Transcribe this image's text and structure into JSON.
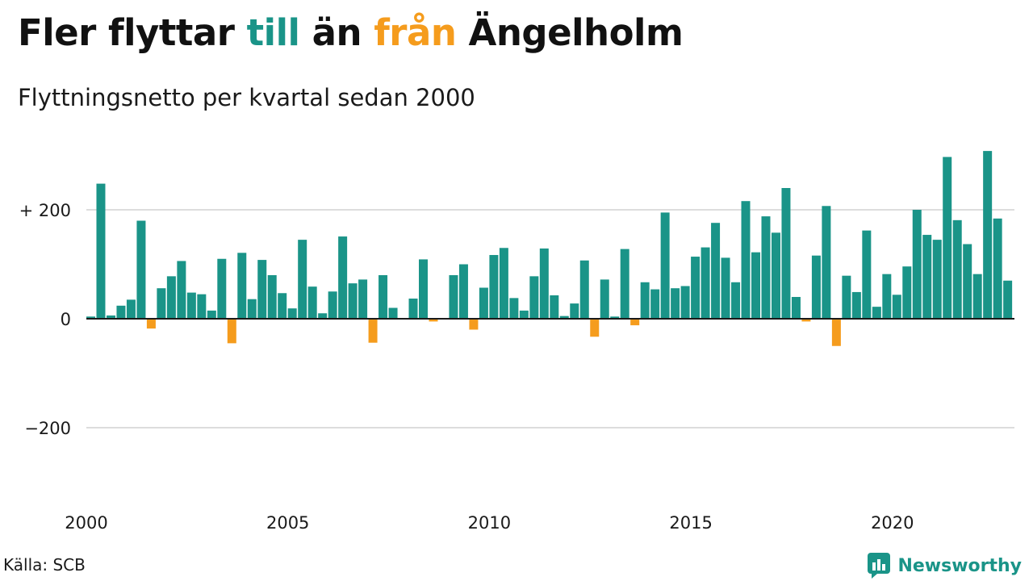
{
  "title": {
    "part1": "Fler flyttar ",
    "part2": "till",
    "part3": " än ",
    "part4": "från",
    "part5": " Ängelholm"
  },
  "subtitle": "Flyttningsnetto per kvartal sedan 2000",
  "source": "Källa: SCB",
  "brand": {
    "name": "Newsworthy",
    "logo_icon": "bar-chart-speech-bubble-icon"
  },
  "colors": {
    "positive": "#1a9488",
    "negative": "#f59c1d",
    "grid": "#dddddd"
  },
  "chart_data": {
    "type": "bar",
    "title": "Fler flyttar till än från Ängelholm",
    "subtitle": "Flyttningsnetto per kvartal sedan 2000",
    "x_start_year": 2000,
    "x_tick_labels": [
      "2000",
      "2005",
      "2010",
      "2015",
      "2020"
    ],
    "x_tick_years": [
      2000,
      2005,
      2010,
      2015,
      2020
    ],
    "y_tick_labels": [
      "+ 200",
      "0",
      "−200"
    ],
    "y_tick_values": [
      200,
      0,
      -200
    ],
    "ylim": [
      -300,
      310
    ],
    "grid": true,
    "values": [
      4,
      248,
      6,
      24,
      35,
      180,
      -18,
      56,
      78,
      106,
      48,
      45,
      15,
      110,
      -45,
      121,
      36,
      108,
      80,
      47,
      19,
      145,
      59,
      10,
      50,
      151,
      65,
      72,
      -44,
      80,
      20,
      0,
      37,
      109,
      -5,
      0,
      80,
      100,
      -20,
      57,
      117,
      130,
      38,
      15,
      78,
      129,
      43,
      5,
      28,
      107,
      -33,
      72,
      4,
      128,
      -12,
      67,
      54,
      195,
      56,
      60,
      114,
      131,
      176,
      112,
      67,
      216,
      122,
      188,
      158,
      240,
      40,
      -5,
      116,
      207,
      -50,
      79,
      49,
      162,
      22,
      82,
      44,
      96,
      200,
      154,
      145,
      297,
      181,
      137,
      82,
      308,
      184,
      70
    ]
  }
}
